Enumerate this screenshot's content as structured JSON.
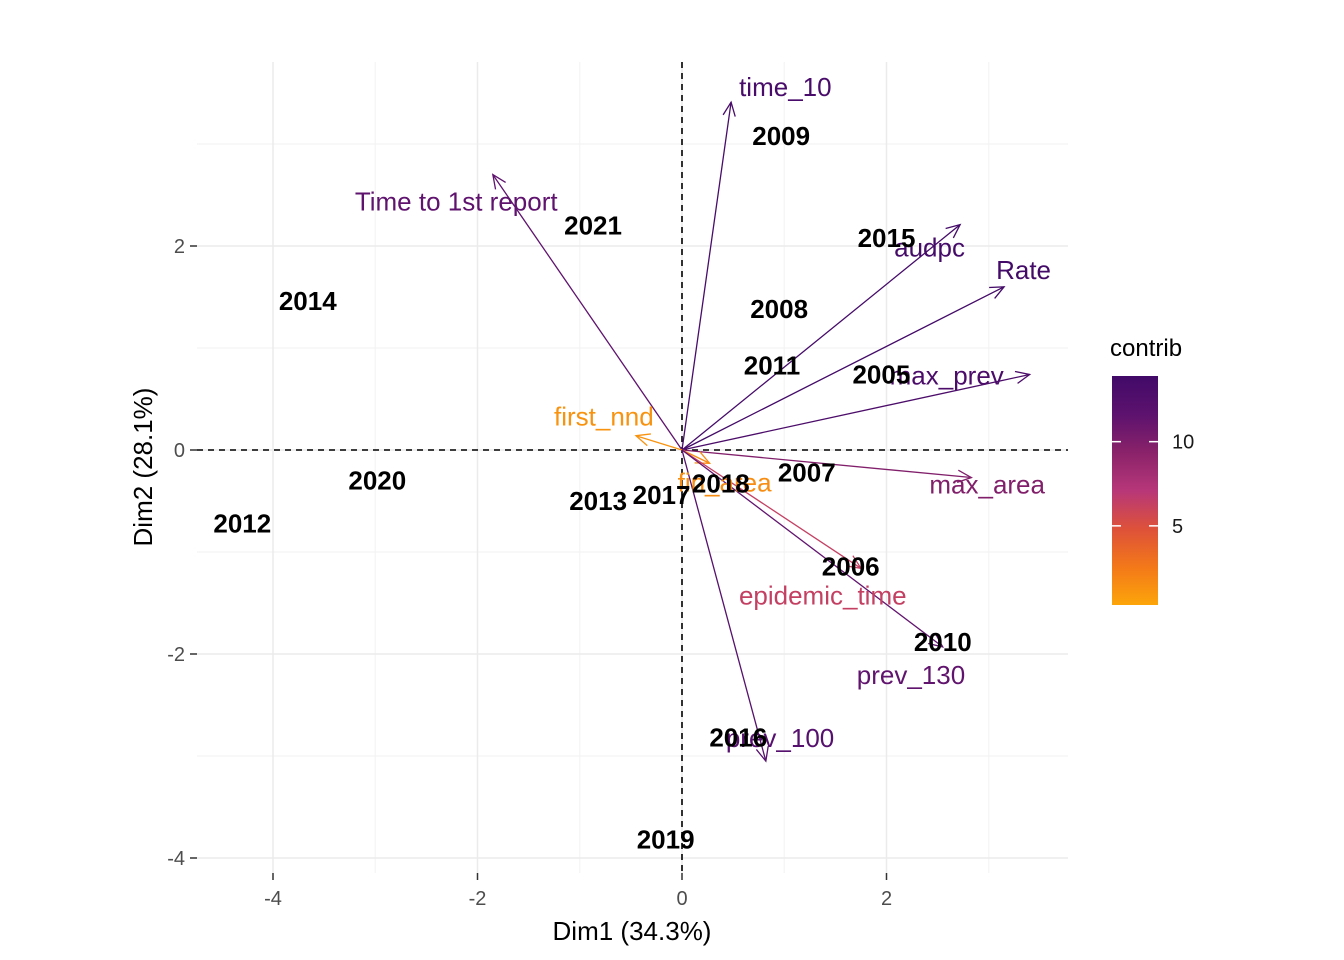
{
  "chart_data": {
    "type": "scatter",
    "subtype": "pca-biplot",
    "xlabel": "Dim1 (34.3%)",
    "ylabel": "Dim2 (28.1%)",
    "xlim": [
      -4.6,
      3.75
    ],
    "ylim": [
      -4.1,
      3.75
    ],
    "xticks": [
      -4,
      -2,
      0,
      2
    ],
    "yticks": [
      -4,
      -2,
      0,
      2
    ],
    "grid": true,
    "reference_lines": {
      "x": 0,
      "y": 0,
      "style": "dashed"
    },
    "individuals": [
      {
        "label": "2005",
        "x": 1.95,
        "y": 0.74
      },
      {
        "label": "2006",
        "x": 1.65,
        "y": -1.14
      },
      {
        "label": "2007",
        "x": 1.22,
        "y": -0.22
      },
      {
        "label": "2008",
        "x": 0.95,
        "y": 1.38
      },
      {
        "label": "2009",
        "x": 0.97,
        "y": 3.08
      },
      {
        "label": "2010",
        "x": 2.55,
        "y": -1.88
      },
      {
        "label": "2011",
        "x": 0.88,
        "y": 0.83
      },
      {
        "label": "2012",
        "x": -4.3,
        "y": -0.72
      },
      {
        "label": "2013",
        "x": -0.82,
        "y": -0.5
      },
      {
        "label": "2014",
        "x": -3.66,
        "y": 1.46
      },
      {
        "label": "2015",
        "x": 2.0,
        "y": 2.08
      },
      {
        "label": "2016",
        "x": 0.55,
        "y": -2.82
      },
      {
        "label": "2017",
        "x": -0.2,
        "y": -0.44
      },
      {
        "label": "2018",
        "x": 0.38,
        "y": -0.33
      },
      {
        "label": "2019",
        "x": -0.16,
        "y": -3.82
      },
      {
        "label": "2020",
        "x": -2.98,
        "y": -0.3
      },
      {
        "label": "2021",
        "x": -0.87,
        "y": 2.2
      }
    ],
    "variables": [
      {
        "label": "time_10",
        "x": 0.48,
        "y": 3.41,
        "contrib": 13.3
      },
      {
        "label": "Time to 1st report",
        "x": -1.85,
        "y": 2.7,
        "contrib": 11.5
      },
      {
        "label": "audpc",
        "x": 2.72,
        "y": 2.21,
        "contrib": 13.6
      },
      {
        "label": "Rate",
        "x": 3.15,
        "y": 1.6,
        "contrib": 13.8
      },
      {
        "label": "max_prev",
        "x": 3.4,
        "y": 0.74,
        "contrib": 13.0
      },
      {
        "label": "first_nnd",
        "x": -0.45,
        "y": 0.14,
        "contrib": 1.2
      },
      {
        "label": "max_area",
        "x": 2.83,
        "y": -0.27,
        "contrib": 9.8
      },
      {
        "label": "fin_area",
        "x": 0.27,
        "y": -0.13,
        "contrib": 1.5
      },
      {
        "label": "epidemic_time",
        "x": 1.75,
        "y": -1.16,
        "contrib": 6.3
      },
      {
        "label": "prev_130",
        "x": 2.55,
        "y": -1.93,
        "contrib": 11.4
      },
      {
        "label": "prev_100",
        "x": 0.82,
        "y": -3.05,
        "contrib": 12.2
      }
    ],
    "legend": {
      "title": "contrib",
      "position": "right",
      "ticks": [
        5,
        10
      ],
      "range": [
        0.3,
        13.9
      ],
      "colors": [
        "#FCA50A",
        "#F37819",
        "#DD513A",
        "#B73779",
        "#8A226A",
        "#5C126E",
        "#420A68"
      ]
    }
  }
}
